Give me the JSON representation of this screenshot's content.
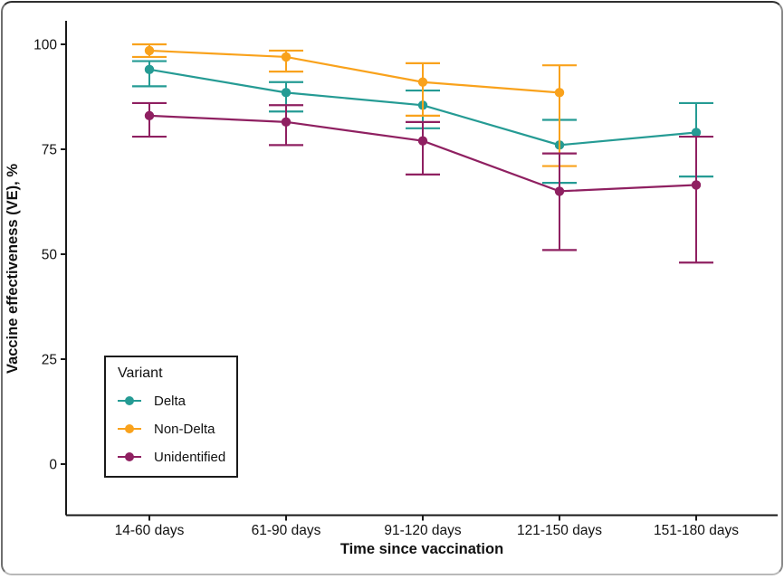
{
  "figure": {
    "background": "#ffffff",
    "border_color": "#4a4a4a",
    "text_color": "#111111"
  },
  "legend": {
    "title": "Variant",
    "position": "inside bottom-left, boxed"
  },
  "chart_data": {
    "type": "line",
    "title": "",
    "xlabel": "Time since vaccination",
    "ylabel": "Vaccine effectiveness (VE), %",
    "categories": [
      "14-60 days",
      "61-90 days",
      "91-120 days",
      "121-150 days",
      "151-180 days"
    ],
    "y_ticks": [
      0,
      25,
      50,
      75,
      100
    ],
    "ylim": [
      -12,
      105
    ],
    "grid": "off",
    "error_bars": true,
    "legend_position": "inside-left-bottom",
    "series": [
      {
        "name": "Delta",
        "color": "#259b94",
        "values": [
          94,
          88.5,
          85.5,
          76,
          79
        ],
        "ci_low": [
          90,
          84,
          80,
          67,
          68.5
        ],
        "ci_high": [
          96,
          91,
          89,
          82,
          86
        ]
      },
      {
        "name": "Non-Delta",
        "color": "#f9a21c",
        "values": [
          98.5,
          97,
          91,
          88.5,
          null
        ],
        "ci_low": [
          97,
          93.5,
          83,
          71,
          null
        ],
        "ci_high": [
          100,
          98.5,
          95.5,
          95,
          null
        ]
      },
      {
        "name": "Unidentified",
        "color": "#8f2061",
        "values": [
          83,
          81.5,
          77,
          65,
          66.5
        ],
        "ci_low": [
          78,
          76,
          69,
          51,
          48
        ],
        "ci_high": [
          86,
          85.5,
          81.5,
          74,
          78
        ]
      }
    ]
  }
}
